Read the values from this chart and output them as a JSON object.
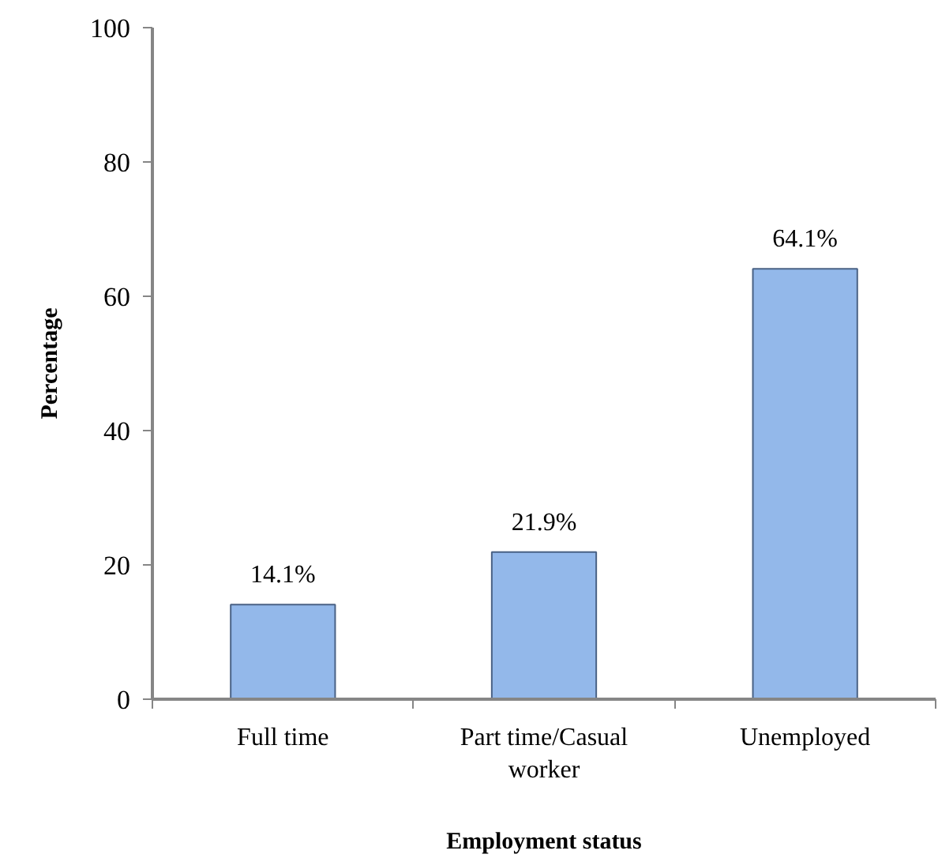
{
  "chart_data": {
    "type": "bar",
    "xlabel": "Employment status",
    "ylabel": "Percentage",
    "categories": [
      "Full time",
      "Part time/Casual worker",
      "Unemployed"
    ],
    "values": [
      14.1,
      21.9,
      64.1
    ],
    "value_labels": [
      "14.1%",
      "21.9%",
      "64.1%"
    ],
    "color": "#93b8ea",
    "ylim": [
      0,
      100
    ],
    "yticks": [
      0,
      20,
      40,
      60,
      80,
      100
    ]
  }
}
